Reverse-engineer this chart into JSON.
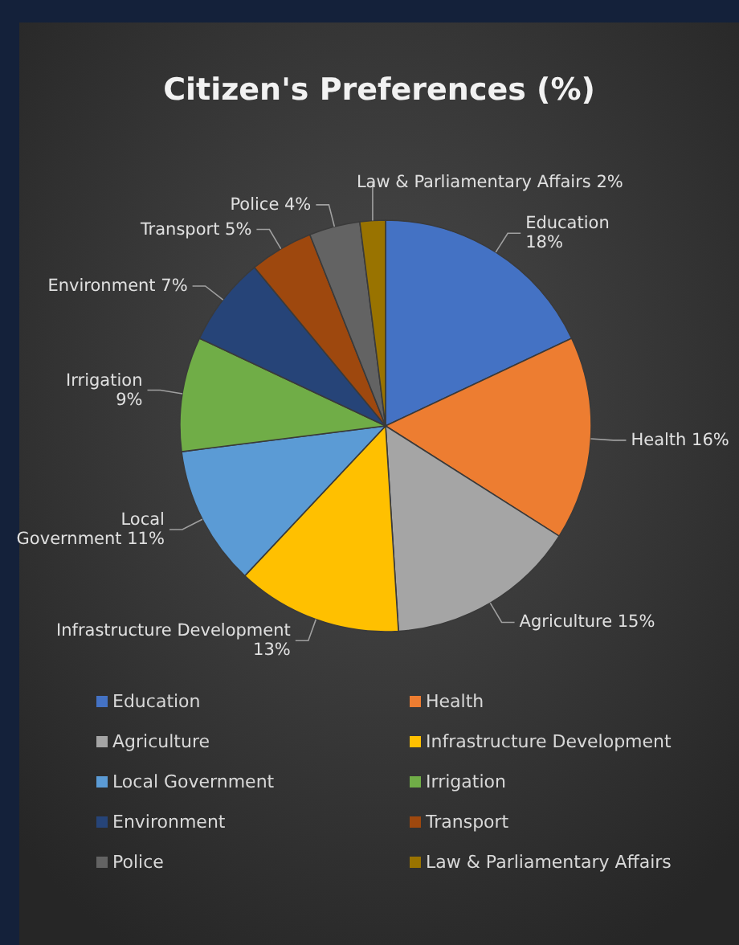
{
  "chart_data": {
    "type": "pie",
    "title": "Citizen's Preferences (%)",
    "categories": [
      "Education",
      "Health",
      "Agriculture",
      "Infrastructure Development",
      "Local Government",
      "Irrigation",
      "Environment",
      "Transport",
      "Police",
      "Law & Parliamentary Affairs"
    ],
    "values": [
      18,
      16,
      15,
      13,
      11,
      9,
      7,
      5,
      4,
      2
    ],
    "value_labels": [
      "18%",
      "16%",
      "15%",
      "13%",
      "11%",
      "9%",
      "7%",
      "5%",
      "4%",
      "2%"
    ],
    "colors": [
      "#4472c4",
      "#ed7d31",
      "#a5a5a5",
      "#ffc000",
      "#5b9bd5",
      "#70ad47",
      "#264478",
      "#9e480e",
      "#636363",
      "#997300"
    ],
    "legend": "bottom"
  }
}
